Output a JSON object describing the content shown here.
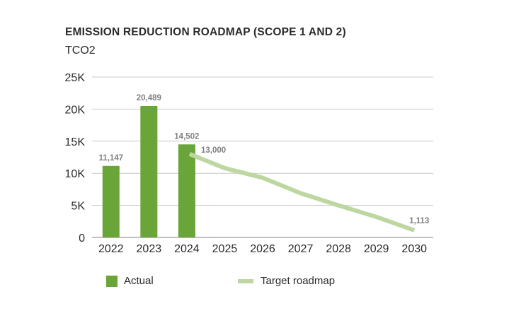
{
  "title": "EMISSION REDUCTION ROADMAP (SCOPE 1 AND 2)",
  "unit": "TCO2",
  "colors": {
    "actual": "#6aa539",
    "target": "#bcd7a0",
    "grid": "#c8c8c8",
    "axis": "#9a9a9a",
    "label": "#808080"
  },
  "chart_data": {
    "type": "bar",
    "categories": [
      "2022",
      "2023",
      "2024",
      "2025",
      "2026",
      "2027",
      "2028",
      "2029",
      "2030"
    ],
    "ylim": [
      0,
      25000
    ],
    "yticks": [
      0,
      5000,
      10000,
      15000,
      20000,
      25000
    ],
    "ytick_labels": [
      "0",
      "5K",
      "10K",
      "15K",
      "20K",
      "25K"
    ],
    "grid": true,
    "legend_position": "bottom",
    "series": [
      {
        "name": "Actual",
        "type": "bar",
        "values": [
          11147,
          20489,
          14502,
          null,
          null,
          null,
          null,
          null,
          null
        ],
        "labels": [
          "11,147",
          "20,489",
          "14,502",
          "",
          "",
          "",
          "",
          "",
          ""
        ]
      },
      {
        "name": "Target roadmap",
        "type": "line",
        "values": [
          null,
          null,
          13000,
          10800,
          9300,
          6900,
          5000,
          3200,
          1113
        ],
        "labels": [
          "",
          "",
          "13,000",
          "",
          "",
          "",
          "",
          "",
          "1,113"
        ]
      }
    ]
  }
}
